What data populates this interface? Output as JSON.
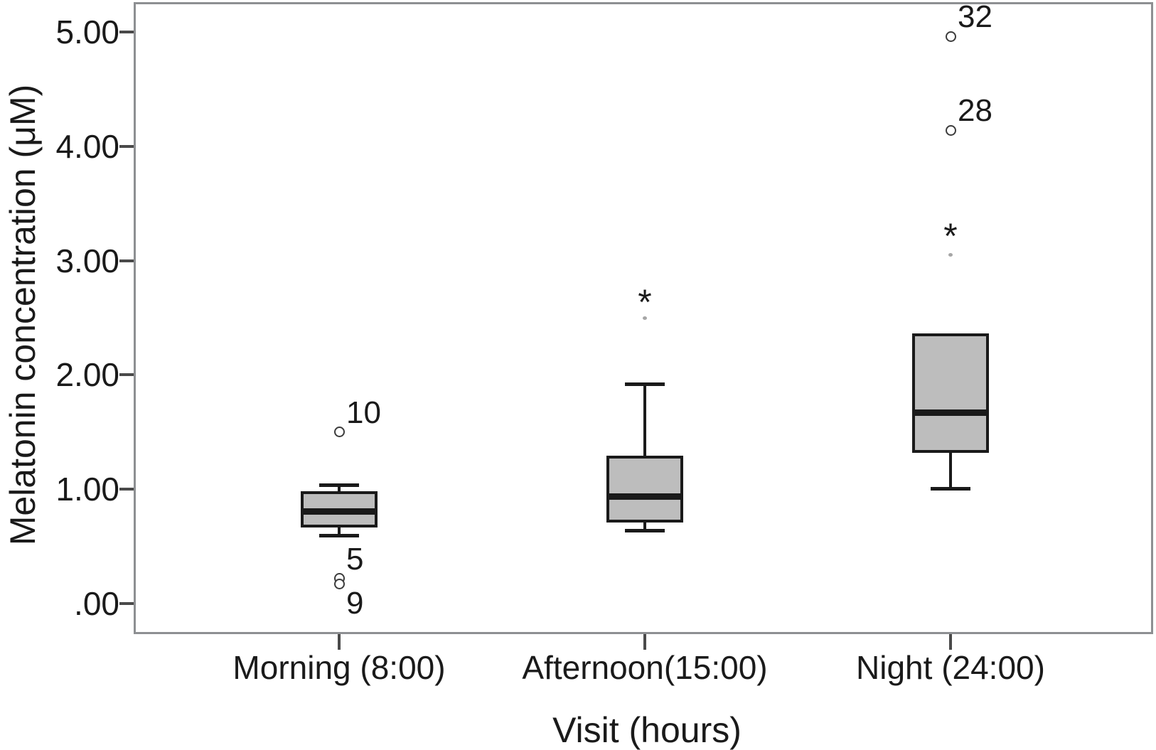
{
  "colors": {
    "background": "#ffffff",
    "plot_border": "#8d8f92",
    "box_fill": "#bdbdbd",
    "box_border": "#1a1a1a",
    "tick_color": "#4a4a4a",
    "faint_dot": "#a6a6a6",
    "text": "#1a1a1a"
  },
  "chart_data": {
    "type": "boxplot",
    "title": "",
    "xlabel": "Visit (hours)",
    "ylabel": "Melatonin concentration (μM)",
    "ylim": [
      -0.27,
      5.26
    ],
    "grid": "off",
    "legend": "none",
    "y_ticks": [
      {
        "label": "5.00",
        "value": 5.0
      },
      {
        "label": "4.00",
        "value": 4.0
      },
      {
        "label": "3.00",
        "value": 3.0
      },
      {
        "label": "2.00",
        "value": 2.0
      },
      {
        "label": "1.00",
        "value": 1.0
      },
      {
        "label": ".00",
        "value": 0.0
      }
    ],
    "categories": [
      "Morning (8:00)",
      "Afternoon(15:00)",
      "Night (24:00)"
    ],
    "boxes": [
      {
        "category": "Morning (8:00)",
        "whisker_low": 0.6,
        "q1": 0.68,
        "median": 0.81,
        "q3": 0.97,
        "whisker_high": 1.04,
        "points": [
          {
            "value": 1.5,
            "marker": "circle",
            "label": "10",
            "label_side": "above"
          },
          {
            "value": 0.22,
            "marker": "circle",
            "label": "5",
            "label_side": "above"
          },
          {
            "value": 0.17,
            "marker": "circle",
            "label": "9",
            "label_side": "below"
          }
        ]
      },
      {
        "category": "Afternoon(15:00)",
        "whisker_low": 0.64,
        "q1": 0.72,
        "median": 0.94,
        "q3": 1.28,
        "whisker_high": 1.92,
        "points": [
          {
            "value": 2.69,
            "marker": "asterisk",
            "label": ""
          },
          {
            "value": 2.5,
            "marker": "dot",
            "label": ""
          }
        ]
      },
      {
        "category": "Night (24:00)",
        "whisker_low": 1.01,
        "q1": 1.33,
        "median": 1.67,
        "q3": 2.35,
        "whisker_high": 2.35,
        "points": [
          {
            "value": 4.96,
            "marker": "circle",
            "label": "32",
            "label_side": "above"
          },
          {
            "value": 4.14,
            "marker": "circle",
            "label": "28",
            "label_side": "above"
          },
          {
            "value": 3.27,
            "marker": "asterisk",
            "label": ""
          },
          {
            "value": 3.05,
            "marker": "dot",
            "label": ""
          }
        ]
      }
    ]
  }
}
